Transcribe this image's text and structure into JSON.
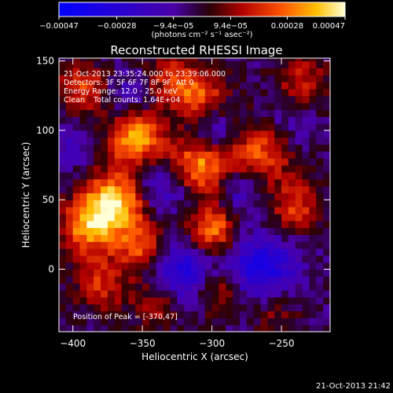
{
  "chart_data": {
    "type": "heatmap",
    "title": "Reconstructed RHESSI Image",
    "xlabel": "Heliocentric X (arcsec)",
    "ylabel": "Heliocentric Y (arcsec)",
    "xlim": [
      -410,
      -215
    ],
    "ylim": [
      -45,
      152
    ],
    "xticks": [
      -400,
      -350,
      -300,
      -250
    ],
    "yticks": [
      0,
      50,
      100,
      150
    ],
    "colorbar": {
      "range": [
        -0.00047,
        0.00047
      ],
      "ticks": [
        "-0.00047",
        "-0.00028",
        "-9.4e-05",
        "9.4e-05",
        "0.00028",
        "0.00047"
      ],
      "tick_values": [
        -0.00047,
        -0.00028,
        -9.4e-05,
        9.4e-05,
        0.00028,
        0.00047
      ],
      "units_text": "(photons cm⁻² s⁻¹ asec⁻²)"
    },
    "colormap_stops": [
      [
        "#0000ff",
        0.0
      ],
      [
        "#4b00a8",
        0.4
      ],
      [
        "#2b0033",
        0.49
      ],
      [
        "#2e0005",
        0.53
      ],
      [
        "#b30000",
        0.64
      ],
      [
        "#ff5500",
        0.78
      ],
      [
        "#ffbf00",
        0.9
      ],
      [
        "#ffffd8",
        1.0
      ]
    ],
    "sources": [
      {
        "x": -370,
        "y": 47,
        "peak": 0.00047,
        "width": 16
      },
      {
        "x": -355,
        "y": 95,
        "peak": 0.0004,
        "width": 14
      },
      {
        "x": -310,
        "y": 75,
        "peak": 0.00038,
        "width": 15
      },
      {
        "x": -300,
        "y": 28,
        "peak": 0.00036,
        "width": 13
      },
      {
        "x": -390,
        "y": 30,
        "peak": 0.0003,
        "width": 14
      },
      {
        "x": -350,
        "y": 15,
        "peak": 0.00028,
        "width": 12
      },
      {
        "x": -310,
        "y": 125,
        "peak": 0.0003,
        "width": 14
      },
      {
        "x": -392,
        "y": 130,
        "peak": 0.00026,
        "width": 13
      },
      {
        "x": -265,
        "y": 85,
        "peak": 0.00028,
        "width": 16
      },
      {
        "x": -240,
        "y": 45,
        "peak": 0.00024,
        "width": 14
      },
      {
        "x": -295,
        "y": -15,
        "peak": 0.00022,
        "width": 13
      },
      {
        "x": -380,
        "y": -10,
        "peak": 0.00022,
        "width": 14
      },
      {
        "x": -235,
        "y": 135,
        "peak": 0.0002,
        "width": 14
      },
      {
        "x": -340,
        "y": -25,
        "peak": 0.00018,
        "width": 12
      },
      {
        "x": -330,
        "y": 140,
        "peak": 0.0002,
        "width": 12
      },
      {
        "x": -255,
        "y": -30,
        "peak": 0.00016,
        "width": 12
      },
      {
        "x": -335,
        "y": 60,
        "peak": -0.0002,
        "width": 14
      },
      {
        "x": -320,
        "y": 0,
        "peak": -0.0003,
        "width": 16
      },
      {
        "x": -300,
        "y": 100,
        "peak": -0.00018,
        "width": 12
      },
      {
        "x": -265,
        "y": 0,
        "peak": -0.0003,
        "width": 18
      },
      {
        "x": -280,
        "y": 55,
        "peak": -0.00015,
        "width": 12
      },
      {
        "x": -360,
        "y": 125,
        "peak": -0.00012,
        "width": 12
      },
      {
        "x": -400,
        "y": 90,
        "peak": -0.00012,
        "width": 12
      },
      {
        "x": -245,
        "y": 105,
        "peak": -0.00012,
        "width": 12
      }
    ]
  },
  "overlay": {
    "time_range": "21-Oct-2013 23:35:24.000 to 23:39:06.000",
    "detectors": "Detectors: 3F 5F 6F 7F 8F 9F, Att 0",
    "energy": "Energy Range: 12.0 - 25.0 keV",
    "clean_label": "Clean",
    "total_counts": "Total counts: 1.64E+04",
    "peak": "Position of Peak = [-370,47]"
  },
  "timestamp": "21-Oct-2013 21:42"
}
